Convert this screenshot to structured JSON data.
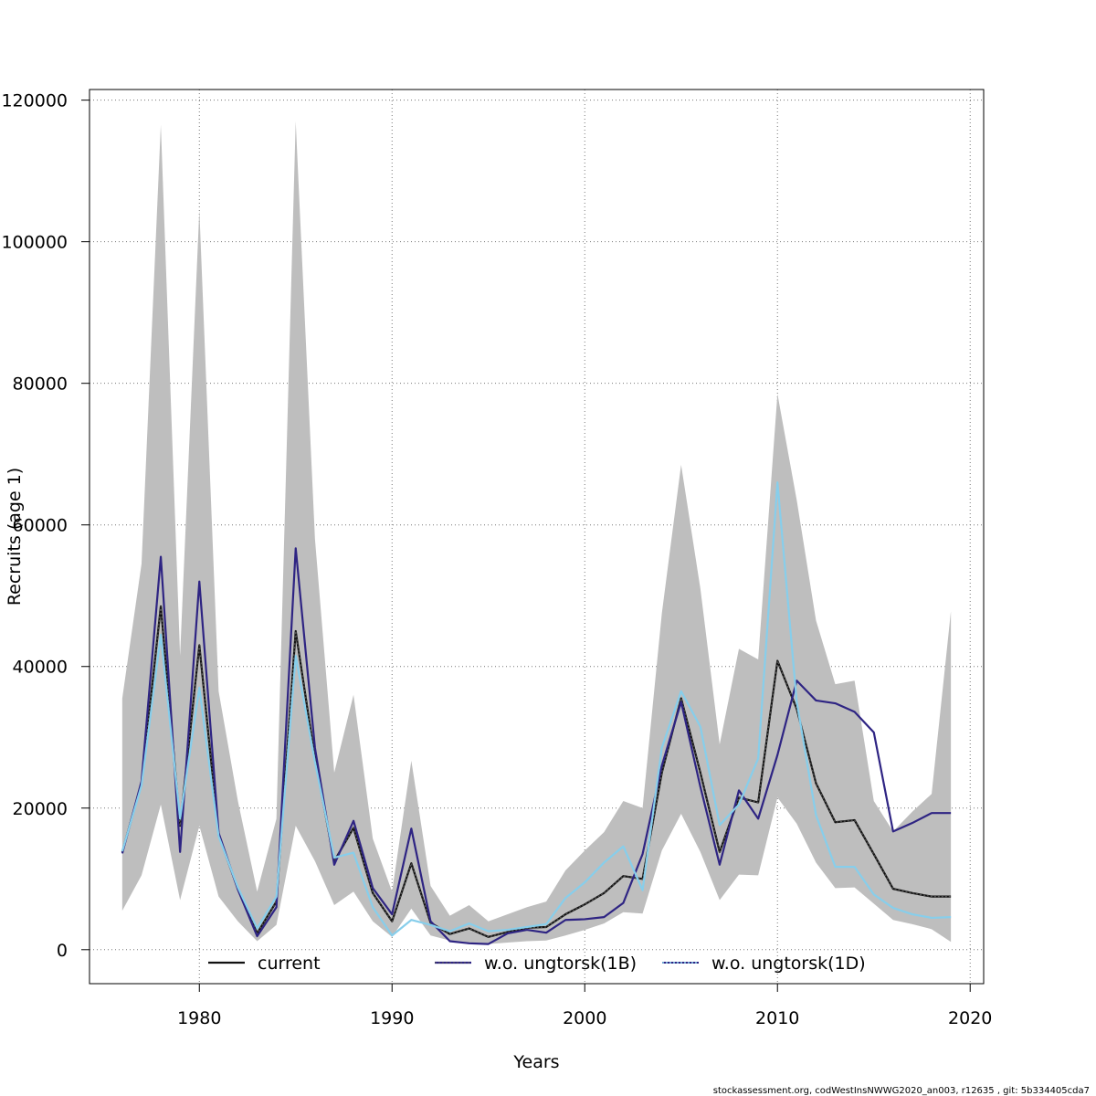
{
  "chart_data": {
    "type": "line",
    "xlabel": "Years",
    "ylabel": "Recruits (age 1)",
    "xlim": [
      1974.3,
      2020.7
    ],
    "ylim": [
      -4800,
      121500
    ],
    "x_ticks": [
      1980,
      1990,
      2000,
      2010,
      2020
    ],
    "x_tick_labels": [
      "1980",
      "1990",
      "2000",
      "2010",
      "2020"
    ],
    "y_ticks": [
      0,
      20000,
      40000,
      60000,
      80000,
      100000,
      120000
    ],
    "y_tick_labels": [
      "0",
      "20000",
      "40000",
      "60000",
      "80000",
      "100000",
      "120000"
    ],
    "grid": true,
    "years": [
      1976,
      1977,
      1978,
      1979,
      1980,
      1981,
      1982,
      1983,
      1984,
      1985,
      1986,
      1987,
      1988,
      1989,
      1990,
      1991,
      1992,
      1993,
      1994,
      1995,
      1996,
      1997,
      1998,
      1999,
      2000,
      2001,
      2002,
      2003,
      2004,
      2005,
      2006,
      2007,
      2008,
      2009,
      2010,
      2011,
      2012,
      2013,
      2014,
      2015,
      2016,
      2017,
      2018,
      2019
    ],
    "confidence_band": {
      "lower": [
        5500,
        10500,
        20500,
        7000,
        17500,
        7500,
        4000,
        1200,
        3500,
        17500,
        12500,
        6300,
        8200,
        4000,
        1800,
        5800,
        2000,
        1300,
        900,
        800,
        1000,
        1200,
        1300,
        2000,
        2800,
        3700,
        5300,
        5100,
        14000,
        19200,
        13800,
        7000,
        10600,
        10500,
        21500,
        17800,
        12300,
        8700,
        8800,
        6500,
        4200,
        3600,
        2900,
        1100
      ],
      "upper": [
        35500,
        54500,
        116500,
        41500,
        104500,
        36500,
        21000,
        8200,
        18500,
        117000,
        58000,
        25000,
        36000,
        15700,
        8200,
        26700,
        9000,
        4800,
        6300,
        4000,
        5000,
        6000,
        6800,
        11200,
        14000,
        16600,
        21000,
        20000,
        47500,
        68500,
        51000,
        29000,
        42500,
        41000,
        78500,
        63500,
        46500,
        37500,
        38000,
        21000,
        16700,
        19500,
        22000,
        47800
      ]
    },
    "series": [
      {
        "name": "current",
        "color": "#111111",
        "style": "solid",
        "values": [
          13800,
          23500,
          48500,
          17500,
          43000,
          16200,
          8600,
          2300,
          6800,
          45000,
          27000,
          12500,
          17200,
          8000,
          4000,
          12200,
          3800,
          2200,
          3000,
          1800,
          2500,
          3100,
          3200,
          5000,
          6400,
          8000,
          10400,
          10000,
          25000,
          35500,
          25000,
          13800,
          21500,
          20800,
          40800,
          34000,
          23500,
          18000,
          18300,
          13500,
          8600,
          8000,
          7500,
          7500
        ]
      },
      {
        "name": "w.o. ungtorsk(1B)",
        "color": "#2e2483",
        "style": "solid",
        "values": [
          13600,
          23800,
          55500,
          13800,
          52000,
          16500,
          8500,
          1900,
          6000,
          56700,
          28500,
          12000,
          18200,
          8700,
          5000,
          17100,
          4000,
          1200,
          900,
          800,
          2300,
          2800,
          2400,
          4200,
          4300,
          4600,
          6600,
          13500,
          26000,
          35000,
          23000,
          12000,
          22500,
          18500,
          27500,
          38000,
          35200,
          34800,
          33600,
          30700,
          16700,
          17900,
          19300,
          19300
        ]
      },
      {
        "name": "w.o. ungtorsk(1D)",
        "color": "#87ceeb",
        "style": "dotted",
        "values": [
          13900,
          23200,
          44500,
          18500,
          37000,
          16000,
          8800,
          3000,
          7500,
          41500,
          26500,
          13000,
          13700,
          6000,
          2000,
          4200,
          3500,
          2600,
          3700,
          2600,
          2800,
          3200,
          3600,
          7300,
          9500,
          12300,
          14600,
          8400,
          28500,
          36500,
          31500,
          17600,
          20500,
          27000,
          66000,
          35000,
          19000,
          11700,
          11700,
          7800,
          5900,
          5000,
          4500,
          4600
        ]
      }
    ],
    "legend_position": "bottom-center",
    "legend_labels": [
      "current",
      "w.o. ungtorsk(1B)",
      "w.o. ungtorsk(1D)"
    ]
  },
  "footer": "stockassessment.org, codWestInsNWWG2020_an003, r12635 , git: 5b334405cda7"
}
